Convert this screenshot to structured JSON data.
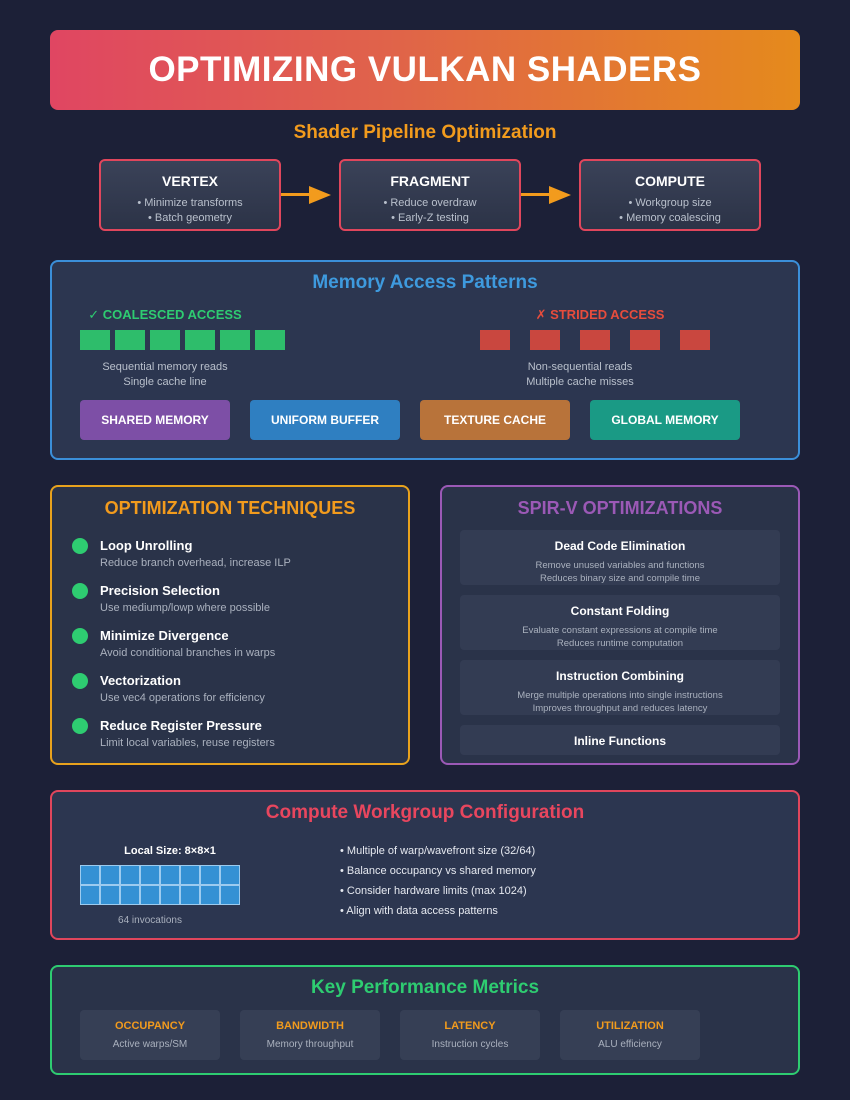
{
  "title": "OPTIMIZING VULKAN SHADERS",
  "pipeline": {
    "title": "Shader Pipeline Optimization",
    "stages": [
      {
        "name": "VERTEX",
        "points": [
          "• Minimize transforms",
          "• Batch geometry"
        ]
      },
      {
        "name": "FRAGMENT",
        "points": [
          "• Reduce overdraw",
          "• Early-Z testing"
        ]
      },
      {
        "name": "COMPUTE",
        "points": [
          "• Workgroup size",
          "• Memory coalescing"
        ]
      }
    ]
  },
  "memory": {
    "title": "Memory Access Patterns",
    "coalesced": {
      "heading": "✓ COALESCED ACCESS",
      "notes": [
        "Sequential memory reads",
        "Single cache line"
      ],
      "color": "#2ebd6b"
    },
    "strided": {
      "heading": "✗ STRIDED ACCESS",
      "notes": [
        "Non-sequential reads",
        "Multiple cache misses"
      ],
      "color": "#c9473f"
    },
    "buttons": [
      {
        "label": "SHARED MEMORY",
        "color": "#7d4fa6"
      },
      {
        "label": "UNIFORM BUFFER",
        "color": "#2f7fc1"
      },
      {
        "label": "TEXTURE CACHE",
        "color": "#b8733a"
      },
      {
        "label": "GLOBAL MEMORY",
        "color": "#1a9a85"
      }
    ]
  },
  "techniques": {
    "title": "OPTIMIZATION TECHNIQUES",
    "items": [
      {
        "name": "Loop Unrolling",
        "desc": "Reduce branch overhead, increase ILP"
      },
      {
        "name": "Precision Selection",
        "desc": "Use mediump/lowp where possible"
      },
      {
        "name": "Minimize Divergence",
        "desc": "Avoid conditional branches in warps"
      },
      {
        "name": "Vectorization",
        "desc": "Use vec4 operations for efficiency"
      },
      {
        "name": "Reduce Register Pressure",
        "desc": "Limit local variables, reuse registers"
      }
    ]
  },
  "spirv": {
    "title": "SPIR-V OPTIMIZATIONS",
    "items": [
      {
        "name": "Dead Code Elimination",
        "desc": [
          "Remove unused variables and functions",
          "Reduces binary size and compile time"
        ]
      },
      {
        "name": "Constant Folding",
        "desc": [
          "Evaluate constant expressions at compile time",
          "Reduces runtime computation"
        ]
      },
      {
        "name": "Instruction Combining",
        "desc": [
          "Merge multiple operations into single instructions",
          "Improves throughput and reduces latency"
        ]
      },
      {
        "name": "Inline Functions",
        "desc": []
      }
    ]
  },
  "workgroup": {
    "title": "Compute Workgroup Configuration",
    "local_size": "Local Size: 8×8×1",
    "invocations": "64 invocations",
    "bullets": [
      "• Multiple of warp/wavefront size (32/64)",
      "• Balance occupancy vs shared memory",
      "• Consider hardware limits (max 1024)",
      "• Align with data access patterns"
    ]
  },
  "metrics": {
    "title": "Key Performance Metrics",
    "items": [
      {
        "name": "OCCUPANCY",
        "desc": "Active warps/SM"
      },
      {
        "name": "BANDWIDTH",
        "desc": "Memory throughput"
      },
      {
        "name": "LATENCY",
        "desc": "Instruction cycles"
      },
      {
        "name": "UTILIZATION",
        "desc": "ALU efficiency"
      }
    ]
  }
}
